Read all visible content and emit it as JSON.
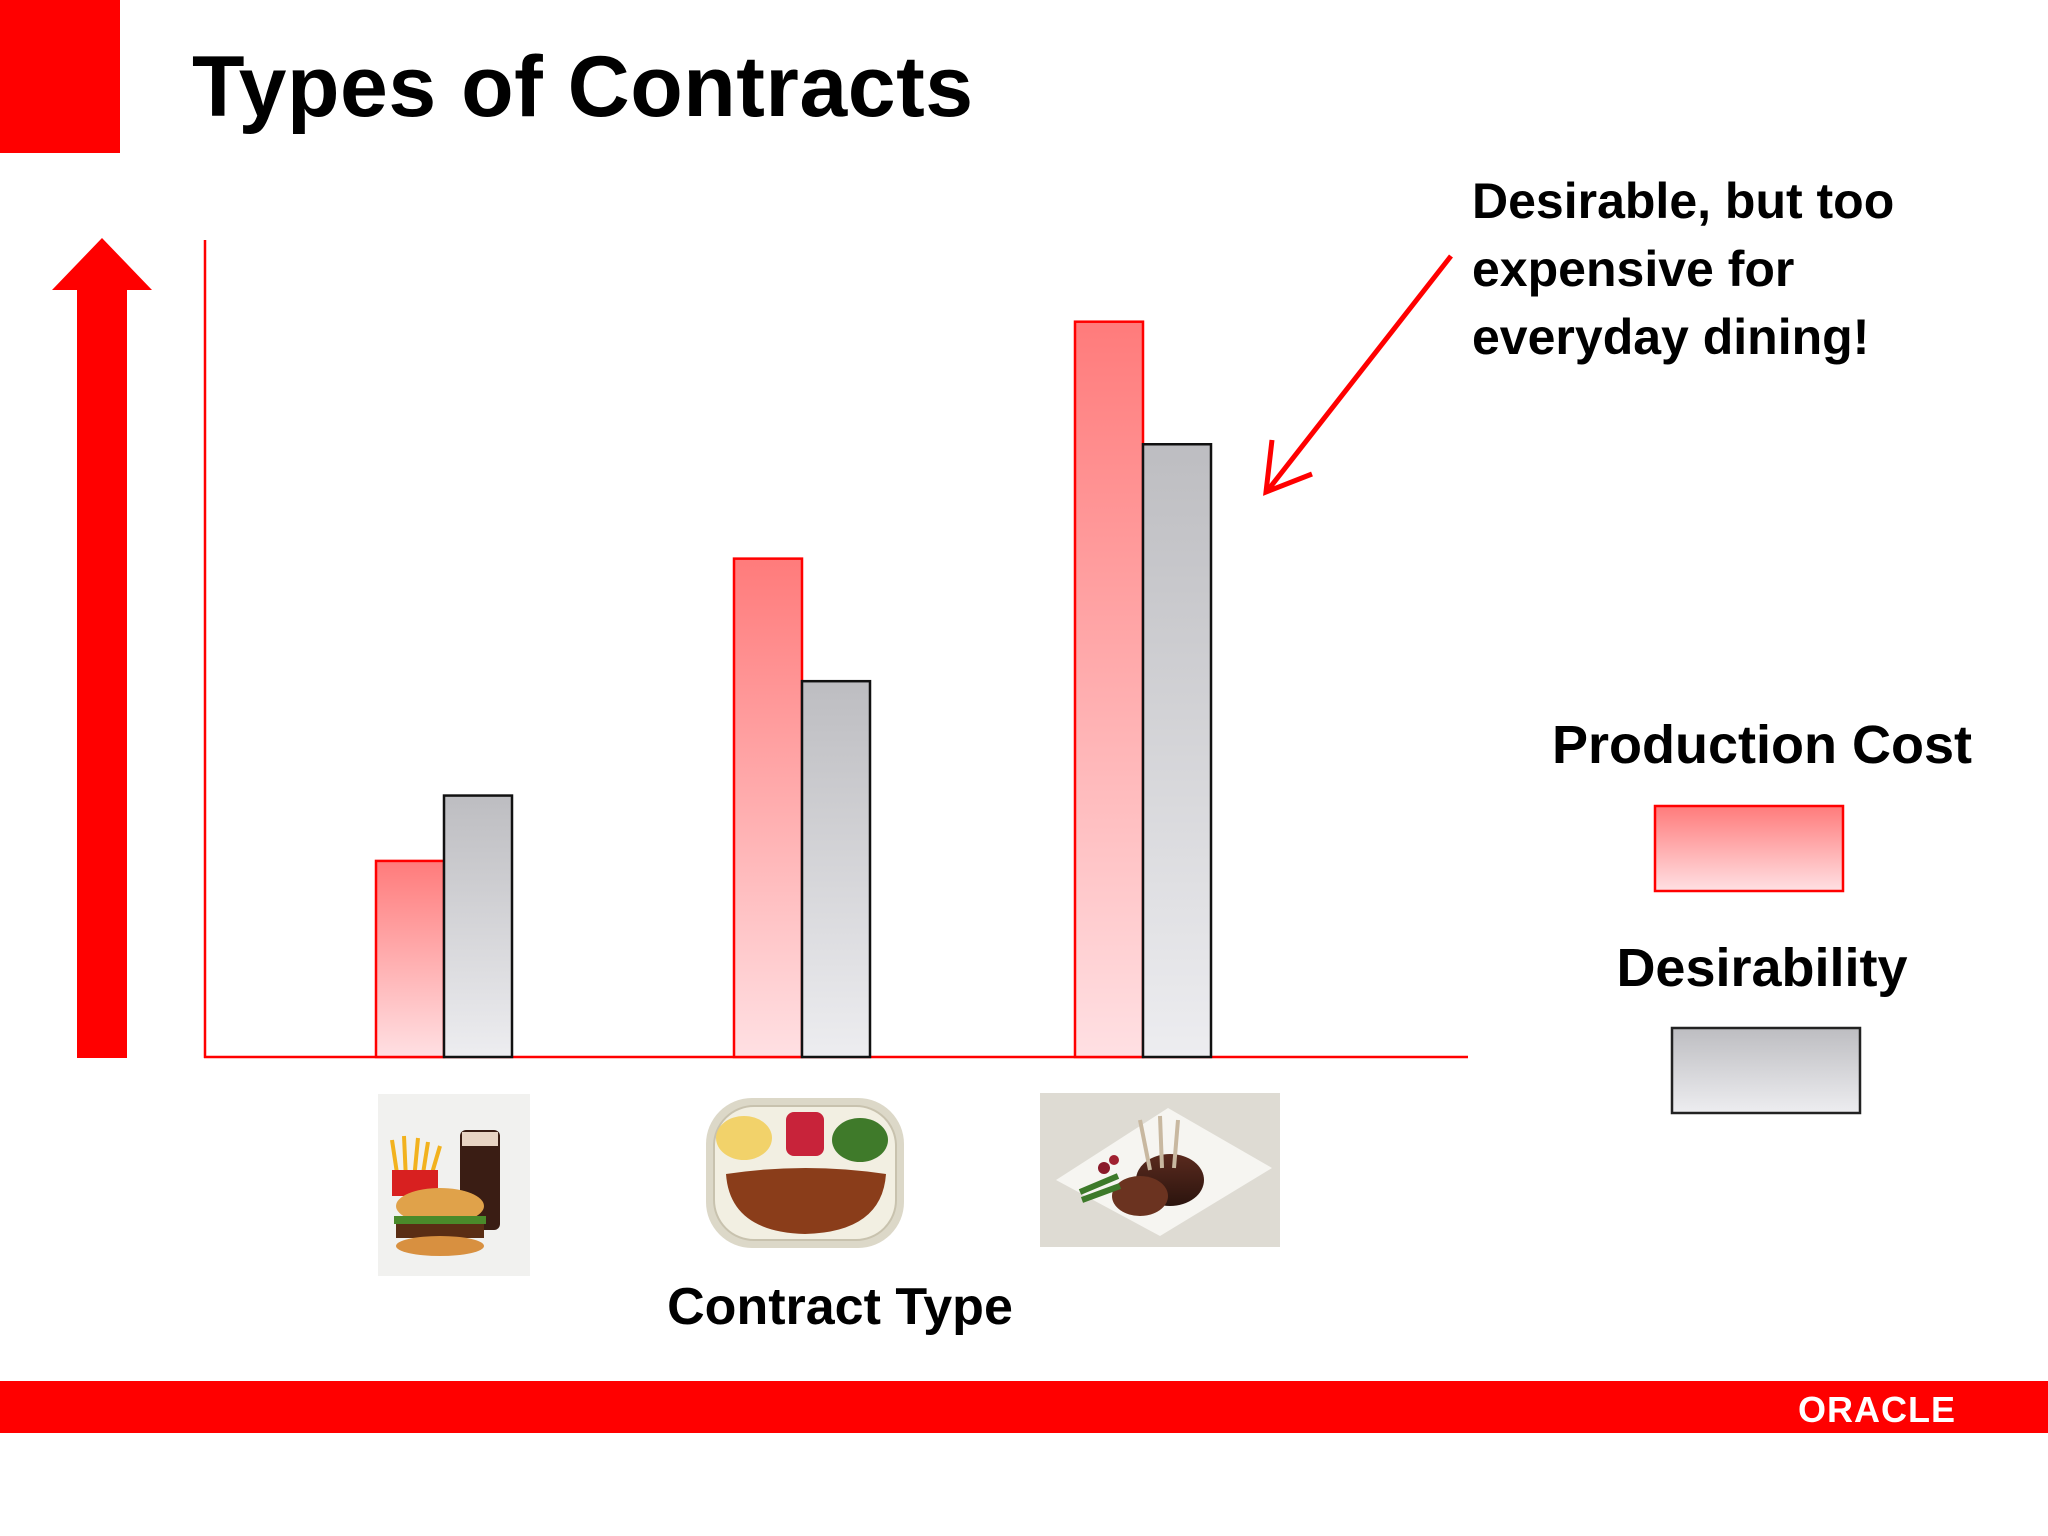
{
  "slide": {
    "title": "Types of Contracts"
  },
  "chart_data": {
    "type": "bar",
    "categories": [
      "Fast food",
      "TV dinner",
      "Fine dining"
    ],
    "category_images": [
      "burger-fries-soda-photo",
      "tv-dinner-tray-photo",
      "lamb-chop-plate-photo"
    ],
    "series": [
      {
        "name": "Production Cost",
        "values": [
          24,
          61,
          90
        ],
        "color": "#ff7b7b"
      },
      {
        "name": "Desirability",
        "values": [
          32,
          46,
          75
        ],
        "color": "#bdbdc1"
      }
    ],
    "xlabel": "Contract Type",
    "ylabel": "",
    "ylim": [
      0,
      100
    ],
    "legend": [
      "Production Cost",
      "Desirability"
    ],
    "legend_position": "right",
    "annotation": {
      "lines": [
        "Desirable, but too",
        "expensive for",
        "everyday dining!"
      ],
      "points_to": "Fine dining"
    }
  },
  "colors": {
    "brand_red": "#ff0000",
    "cost_fill": "#ff7b7b",
    "desire_fill": "#bdbdc1"
  },
  "footer": {
    "logo_text": "ORACLE"
  }
}
